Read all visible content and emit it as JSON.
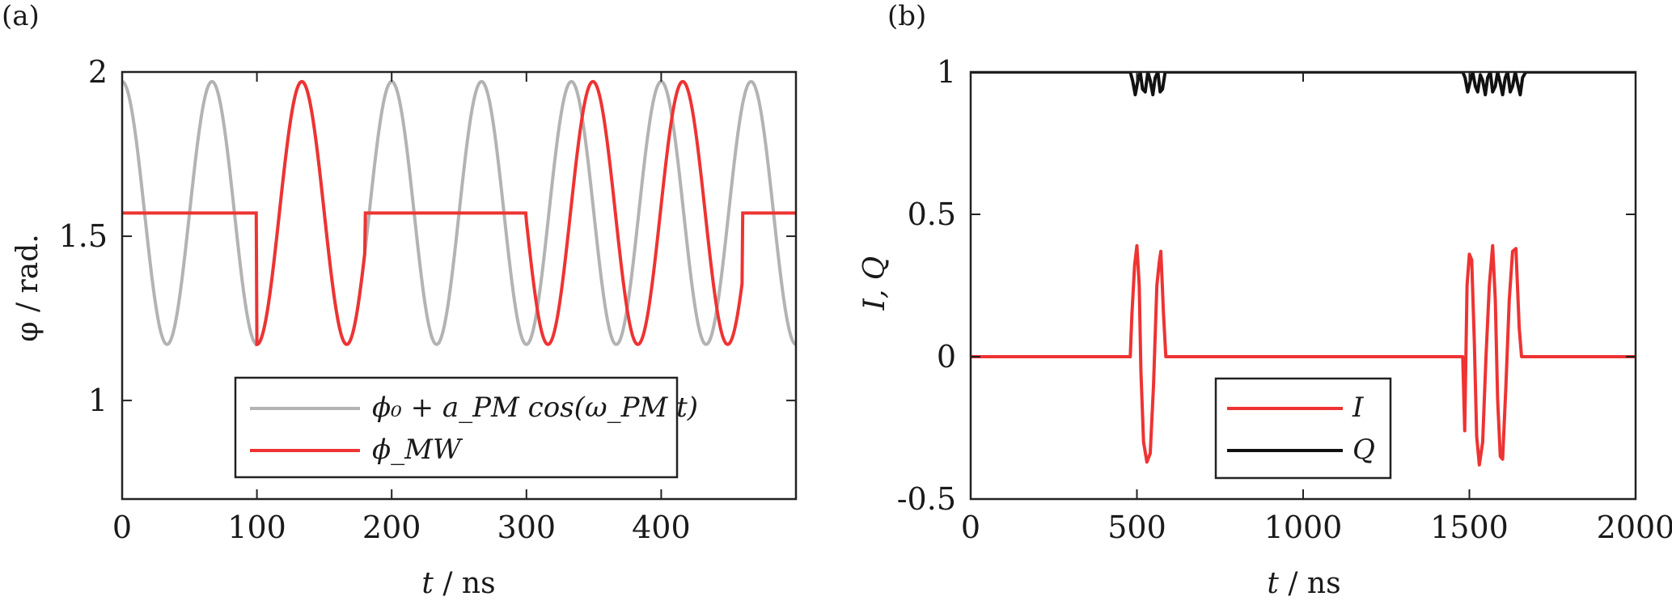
{
  "panels": [
    {
      "label": "(a)",
      "xlabel_var": "t",
      "xlabel_unit": " / ns",
      "ylabel": "φ / rad."
    },
    {
      "label": "(b)",
      "xlabel_var": "t",
      "xlabel_unit": " / ns",
      "ylabel": "I, Q"
    }
  ],
  "chart_data": [
    {
      "type": "line",
      "title": "",
      "xlabel": "t / ns",
      "ylabel": "φ / rad.",
      "xlim": [
        0,
        500
      ],
      "ylim": [
        0.7,
        2.0
      ],
      "xticks": [
        0,
        100,
        200,
        300,
        400
      ],
      "xtick_labels": [
        "0",
        "100",
        "200",
        "300",
        "400"
      ],
      "yticks": [
        1,
        1.5,
        2
      ],
      "ytick_labels": [
        "1",
        "1.5",
        "2"
      ],
      "legend_position": "bottom-right",
      "series": [
        {
          "name": "φ0 + aPM cos(ωPM t)",
          "legend_label": "ϕ₀ + a_PM cos(ω_PM t)",
          "color": "#b3b3b3",
          "model": "offset + amplitude*cos(2*pi*t/period)",
          "offset": 1.5708,
          "amplitude": 0.4,
          "period_ns": 66.67,
          "t_range": [
            0,
            500
          ]
        },
        {
          "name": "φMW",
          "legend_label": "ϕ_MW",
          "color": "#ee3333",
          "description": "constant 1.5708 except during pulse windows where it follows a phase-shifted cosine",
          "constant": 1.5708,
          "windows": [
            {
              "t_start": 100,
              "t_end": 180,
              "phase_offset_ns": 100
            },
            {
              "t_start": 300,
              "t_end": 460,
              "phase_offset_ns": 316
            }
          ]
        }
      ]
    },
    {
      "type": "line",
      "title": "",
      "xlabel": "t / ns",
      "ylabel": "I, Q",
      "xlim": [
        0,
        2000
      ],
      "ylim": [
        -0.5,
        1.0
      ],
      "xticks": [
        0,
        500,
        1000,
        1500,
        2000
      ],
      "xtick_labels": [
        "0",
        "500",
        "1000",
        "1500",
        "2000"
      ],
      "yticks": [
        -0.5,
        0,
        0.5,
        1
      ],
      "ytick_labels": [
        "-0.5",
        "0",
        "0.5",
        "1"
      ],
      "legend_position": "bottom-center",
      "series": [
        {
          "name": "I",
          "color": "#ee3333",
          "x": [
            0,
            480,
            485,
            493,
            500,
            507,
            512,
            520,
            530,
            540,
            550,
            560,
            567,
            572,
            580,
            587,
            600,
            1480,
            1486,
            1493,
            1500,
            1507,
            1515,
            1522,
            1530,
            1540,
            1550,
            1560,
            1570,
            1578,
            1585,
            1593,
            1600,
            1610,
            1620,
            1630,
            1640,
            1650,
            1657,
            1665,
            2000
          ],
          "y": [
            0,
            0,
            0.15,
            0.32,
            0.39,
            0.25,
            -0.05,
            -0.3,
            -0.37,
            -0.34,
            -0.1,
            0.25,
            0.33,
            0.37,
            0.15,
            0,
            0,
            0,
            -0.26,
            0.25,
            0.36,
            0.34,
            0.05,
            -0.28,
            -0.38,
            -0.3,
            0.0,
            0.25,
            0.39,
            0.2,
            -0.15,
            -0.35,
            -0.36,
            -0.1,
            0.2,
            0.37,
            0.38,
            0.1,
            0.0,
            0,
            0
          ]
        },
        {
          "name": "Q",
          "color": "#111111",
          "x": [
            0,
            480,
            487,
            495,
            503,
            510,
            517,
            525,
            533,
            540,
            548,
            555,
            563,
            570,
            577,
            585,
            600,
            1480,
            1487,
            1495,
            1503,
            1510,
            1518,
            1525,
            1533,
            1540,
            1548,
            1555,
            1563,
            1570,
            1578,
            1585,
            1593,
            1600,
            1608,
            1615,
            1623,
            1630,
            1638,
            1645,
            1653,
            1660,
            1670,
            2000
          ],
          "y": [
            1,
            1,
            0.97,
            0.92,
            0.97,
            1,
            0.94,
            0.93,
            1,
            0.97,
            0.92,
            0.98,
            1,
            0.93,
            0.94,
            1,
            1,
            1,
            0.98,
            0.93,
            0.97,
            1,
            0.95,
            0.93,
            0.99,
            0.97,
            0.92,
            0.98,
            1,
            0.93,
            0.95,
            1,
            0.96,
            0.92,
            0.98,
            1,
            0.93,
            0.95,
            1,
            0.96,
            0.92,
            0.98,
            1,
            1
          ]
        }
      ]
    }
  ]
}
